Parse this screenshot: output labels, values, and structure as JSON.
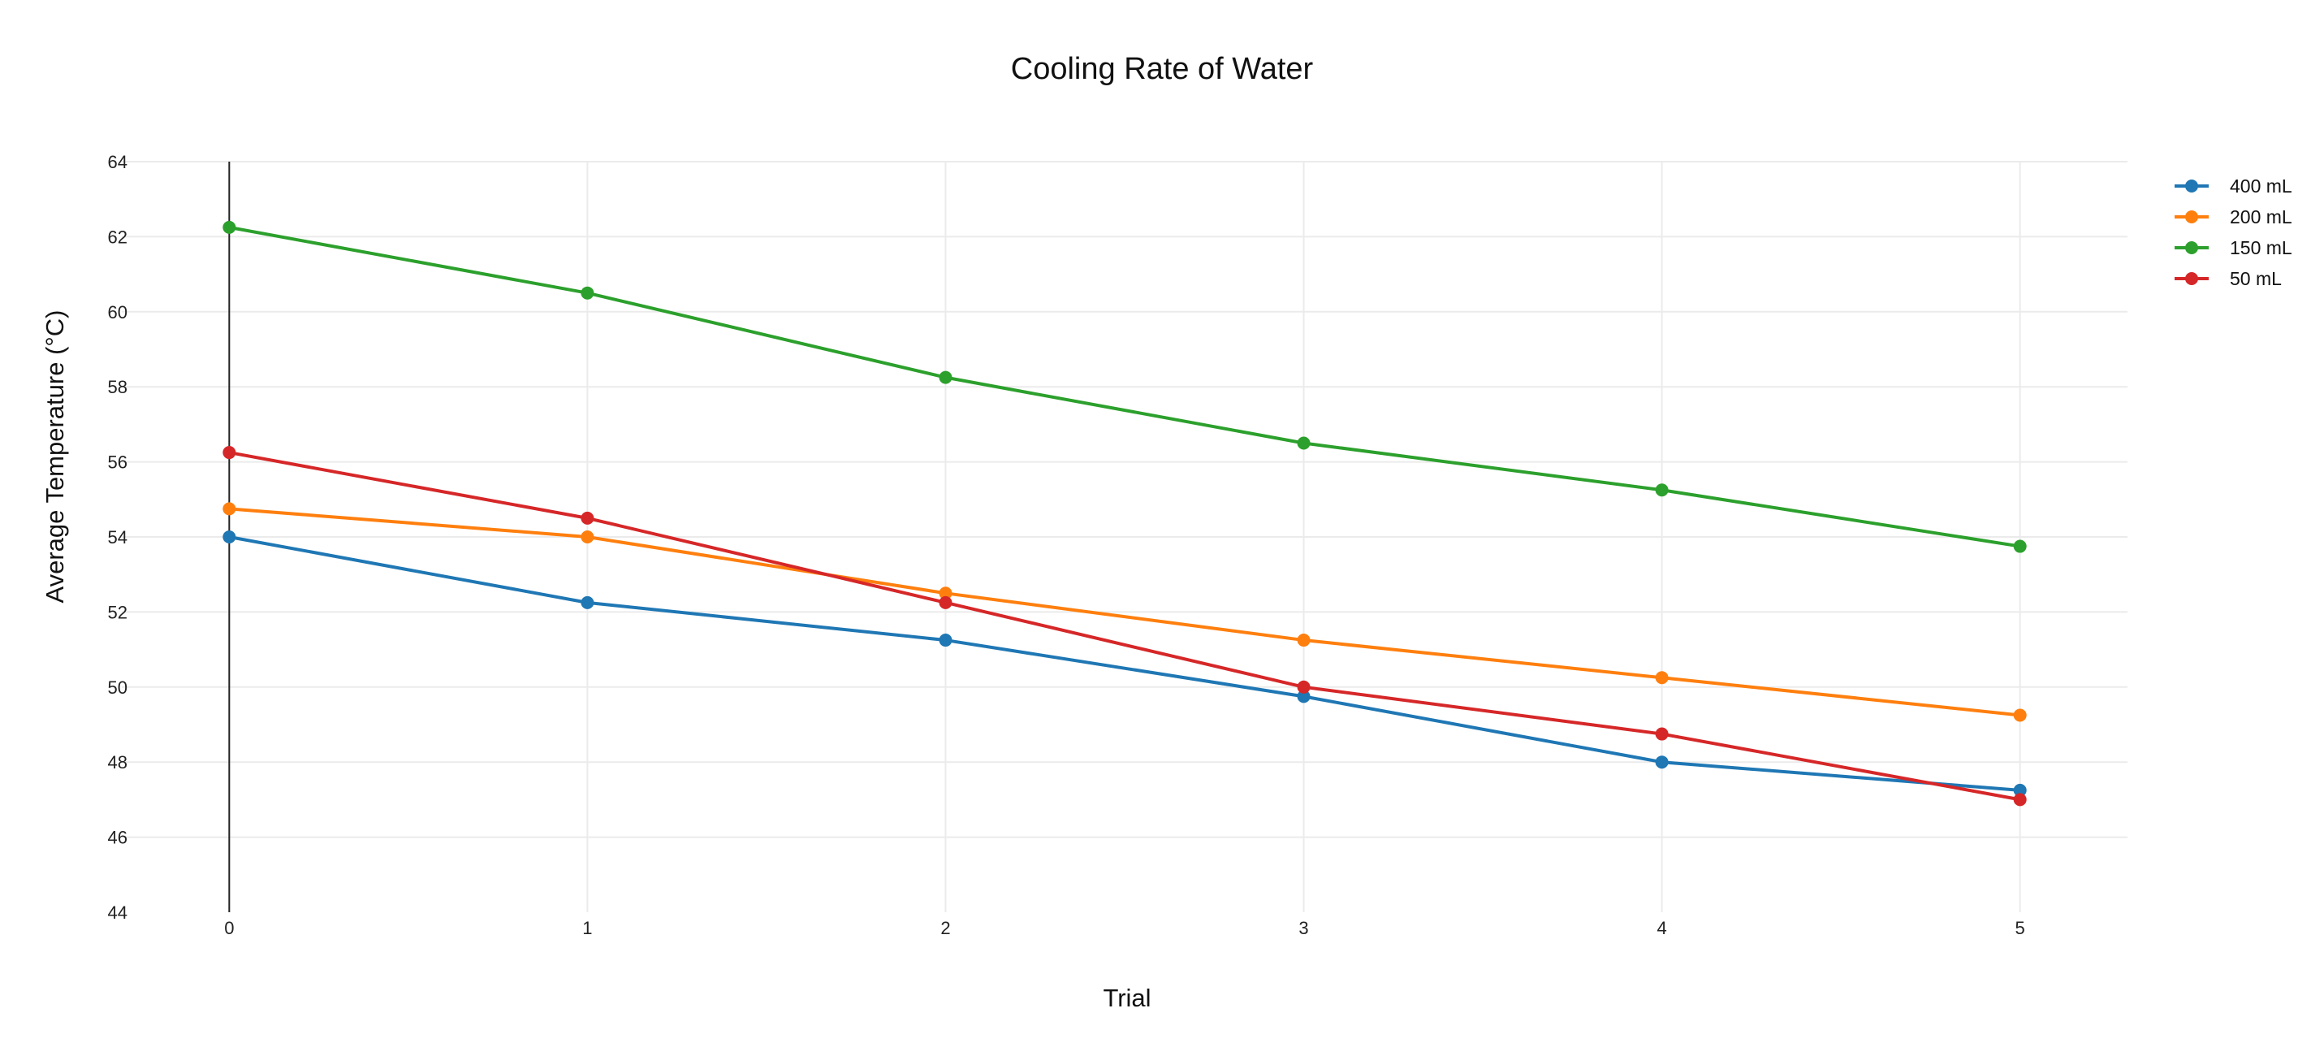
{
  "chart_data": {
    "type": "line",
    "title": "Cooling Rate of Water",
    "xlabel": "Trial",
    "ylabel": "Average Temperature (°C)",
    "x": [
      0,
      1,
      2,
      3,
      4,
      5
    ],
    "xticks": [
      "0",
      "1",
      "2",
      "3",
      "4",
      "5"
    ],
    "xlim": [
      -0.3,
      5.3
    ],
    "yticks": [
      "44",
      "46",
      "48",
      "50",
      "52",
      "54",
      "56",
      "58",
      "60",
      "62",
      "64"
    ],
    "ylim": [
      44,
      64
    ],
    "grid": true,
    "legend_position": "top-right",
    "series": [
      {
        "name": "400 mL",
        "color": "#1f77b4",
        "values": [
          54.0,
          52.25,
          51.25,
          49.75,
          48.0,
          47.25
        ]
      },
      {
        "name": "200 mL",
        "color": "#ff7f0e",
        "values": [
          54.75,
          54.0,
          52.5,
          51.25,
          50.25,
          49.25
        ]
      },
      {
        "name": "150 mL",
        "color": "#2ca02c",
        "values": [
          62.25,
          60.5,
          58.25,
          56.5,
          55.25,
          53.75
        ]
      },
      {
        "name": "50 mL",
        "color": "#d62728",
        "values": [
          56.25,
          54.5,
          52.25,
          50.0,
          48.75,
          47.0
        ]
      }
    ]
  }
}
